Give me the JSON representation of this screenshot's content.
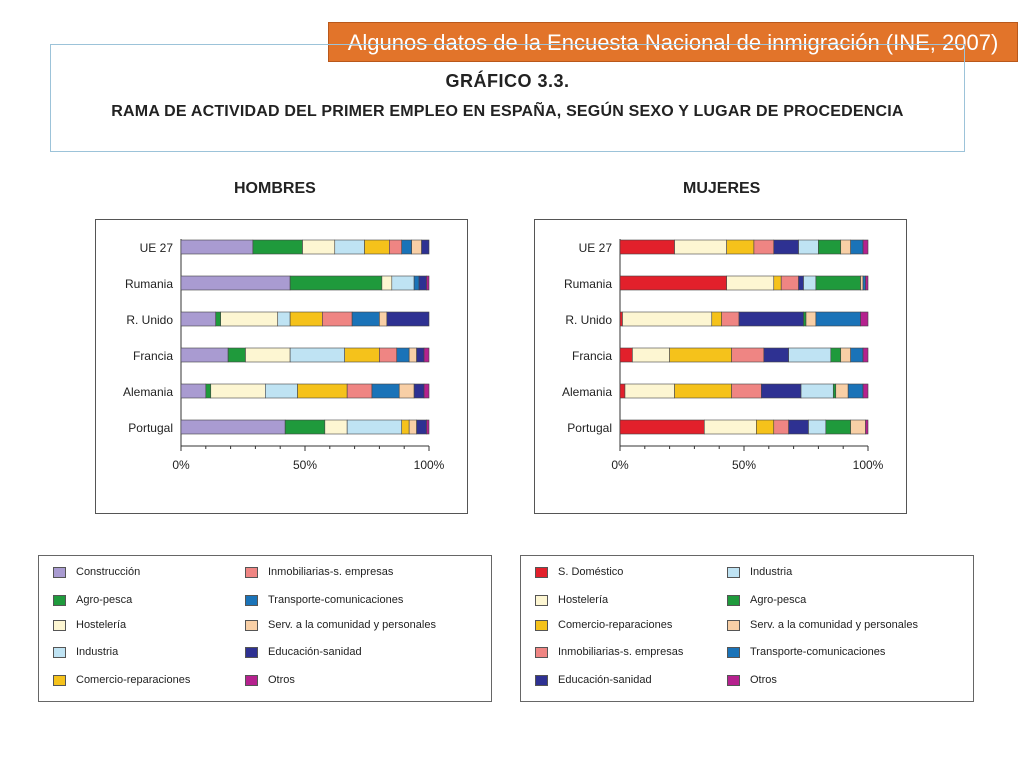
{
  "banner": "Algunos datos de la Encuesta Nacional de inmigración (INE, 2007)",
  "graph_title": "GRÁFICO 3.3.",
  "graph_subtitle": "RAMA DE ACTIVIDAD DEL PRIMER EMPLEO EN ESPAÑA, SEGÚN SEXO Y LUGAR DE PROCEDENCIA",
  "colors": {
    "Construcción": "#a99bd1",
    "Agro-pesca": "#1f9a3c",
    "Hostelería": "#fdf6d2",
    "Industria": "#bfe3f3",
    "Comercio-reparaciones": "#f5c21b",
    "Inmobiliarias-s. empresas": "#ef8583",
    "Transporte-comunicaciones": "#1a73b8",
    "Serv. a la comunidad y personales": "#f8cfa6",
    "Educación-sanidad": "#2e3192",
    "Otros": "#b5218e",
    "S. Doméstico": "#e2202b"
  },
  "chart_data": [
    {
      "type": "bar",
      "orientation": "horizontal",
      "stacked": "percent",
      "title": "HOMBRES",
      "categories": [
        "UE 27",
        "Rumania",
        "R. Unido",
        "Francia",
        "Alemania",
        "Portugal"
      ],
      "x_ticks": [
        "0%",
        "50%",
        "100%"
      ],
      "xlim": [
        0,
        100
      ],
      "series": [
        {
          "name": "Construcción",
          "values": [
            29,
            44,
            14,
            19,
            10,
            42
          ]
        },
        {
          "name": "Agro-pesca",
          "values": [
            20,
            37,
            2,
            7,
            2,
            16
          ]
        },
        {
          "name": "Hostelería",
          "values": [
            13,
            4,
            23,
            18,
            22,
            9
          ]
        },
        {
          "name": "Industria",
          "values": [
            12,
            9,
            5,
            22,
            13,
            22
          ]
        },
        {
          "name": "Comercio-reparaciones",
          "values": [
            10,
            0,
            13,
            14,
            20,
            3
          ]
        },
        {
          "name": "Inmobiliarias-s. empresas",
          "values": [
            5,
            0,
            12,
            7,
            10,
            0
          ]
        },
        {
          "name": "Transporte-comunicaciones",
          "values": [
            4,
            2,
            11,
            5,
            11,
            0
          ]
        },
        {
          "name": "Serv. a la comunidad y personales",
          "values": [
            4,
            0,
            3,
            3,
            6,
            3
          ]
        },
        {
          "name": "Educación-sanidad",
          "values": [
            3,
            3,
            17,
            3,
            4,
            4
          ]
        },
        {
          "name": "Otros",
          "values": [
            0,
            1,
            0,
            2,
            2,
            1
          ]
        }
      ]
    },
    {
      "type": "bar",
      "orientation": "horizontal",
      "stacked": "percent",
      "title": "MUJERES",
      "categories": [
        "UE 27",
        "Rumania",
        "R. Unido",
        "Francia",
        "Alemania",
        "Portugal"
      ],
      "x_ticks": [
        "0%",
        "50%",
        "100%"
      ],
      "xlim": [
        0,
        100
      ],
      "series": [
        {
          "name": "S. Doméstico",
          "values": [
            22,
            43,
            1,
            5,
            2,
            34
          ]
        },
        {
          "name": "Hostelería",
          "values": [
            21,
            19,
            36,
            15,
            20,
            21
          ]
        },
        {
          "name": "Comercio-reparaciones",
          "values": [
            11,
            3,
            4,
            25,
            23,
            7
          ]
        },
        {
          "name": "Inmobiliarias-s. empresas",
          "values": [
            8,
            7,
            7,
            13,
            12,
            6
          ]
        },
        {
          "name": "Educación-sanidad",
          "values": [
            10,
            2,
            26,
            10,
            16,
            8
          ]
        },
        {
          "name": "Industria",
          "values": [
            8,
            5,
            0,
            17,
            13,
            7
          ]
        },
        {
          "name": "Agro-pesca",
          "values": [
            9,
            18,
            1,
            4,
            1,
            10
          ]
        },
        {
          "name": "Serv. a la comunidad y personales",
          "values": [
            4,
            1,
            4,
            4,
            5,
            6
          ]
        },
        {
          "name": "Transporte-comunicaciones",
          "values": [
            5,
            1,
            18,
            5,
            6,
            0
          ]
        },
        {
          "name": "Otros",
          "values": [
            2,
            1,
            3,
            2,
            2,
            1
          ]
        }
      ]
    }
  ],
  "legends": [
    {
      "columns": [
        [
          "Construcción",
          "Agro-pesca",
          "Hostelería",
          "Industria",
          "Comercio-reparaciones"
        ],
        [
          "Inmobiliarias-s. empresas",
          "Transporte-comunicaciones",
          "Serv. a la comunidad y personales",
          "Educación-sanidad",
          "Otros"
        ]
      ]
    },
    {
      "columns": [
        [
          "S. Doméstico",
          "Hostelería",
          "Comercio-reparaciones",
          "Inmobiliarias-s. empresas",
          "Educación-sanidad"
        ],
        [
          "Industria",
          "Agro-pesca",
          "Serv. a la comunidad y personales",
          "Transporte-comunicaciones",
          "Otros"
        ]
      ]
    }
  ]
}
